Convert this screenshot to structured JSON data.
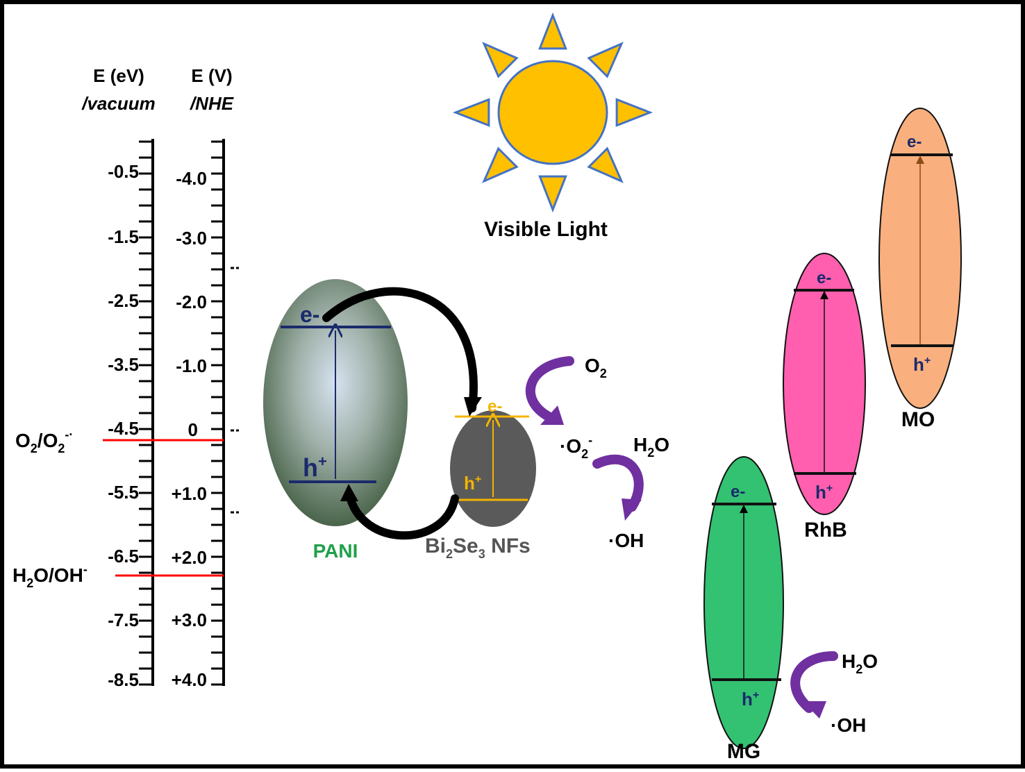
{
  "axes": {
    "vacuum": {
      "header_line1": "E (eV)",
      "header_line2": "/vacuum",
      "ticks": [
        "-0.5",
        "-1.5",
        "-2.5",
        "-3.5",
        "-4.5",
        "-5.5",
        "-6.5",
        "-7.5",
        "-8.5"
      ]
    },
    "nhe": {
      "header_line1": "E (V)",
      "header_line2": "/NHE",
      "ticks": [
        "-4.0",
        "-3.0",
        "-2.0",
        "-1.0",
        "0",
        "+1.0",
        "+2.0",
        "+3.0",
        "+4.0"
      ]
    }
  },
  "redox_levels": {
    "o2": {
      "label_main": "O",
      "label_sub": "2",
      "label_mid": "/O",
      "label_sub2": "2",
      "label_sup": "-·"
    },
    "h2o": {
      "label_main": "H",
      "label_sub": "2",
      "label_mid": "O/OH",
      "label_sup": "-"
    }
  },
  "sun": {
    "caption": "Visible Light",
    "fill": "#FFC000",
    "stroke": "#4472C4"
  },
  "pani": {
    "label": "PANI",
    "label_color": "#1FA04A",
    "electron": "e-",
    "hole_main": "h",
    "hole_sup": "+"
  },
  "bi2se3": {
    "label_p1": "Bi",
    "label_s1": "2",
    "label_p2": "Se",
    "label_s2": "3",
    "label_p3": " NFs",
    "electron": "e-",
    "hole_main": "h",
    "hole_sup": "+",
    "band_color": "#F5B400"
  },
  "reactions": {
    "o2": {
      "main": "O",
      "sub": "2"
    },
    "superoxide": {
      "pre": "·O",
      "sub": "2",
      "sup": "-"
    },
    "h2o_1": {
      "main": "H",
      "sub": "2",
      "end": "O"
    },
    "oh_1": "·OH",
    "h2o_2": {
      "main": "H",
      "sub": "2",
      "end": "O"
    },
    "oh_2": "·OH",
    "arrow_color": "#7030A0"
  },
  "dyes": [
    {
      "id": "mg",
      "label": "MG",
      "fill": "#33C172",
      "electron": "e-",
      "hole_main": "h",
      "hole_sup": "+"
    },
    {
      "id": "rhb",
      "label": "RhB",
      "fill": "#FF5FAE",
      "electron": "e-",
      "hole_main": "h",
      "hole_sup": "+"
    },
    {
      "id": "mo",
      "label": "MO",
      "fill": "#F9B07E",
      "electron": "e-",
      "hole_main": "h",
      "hole_sup": "+"
    }
  ]
}
